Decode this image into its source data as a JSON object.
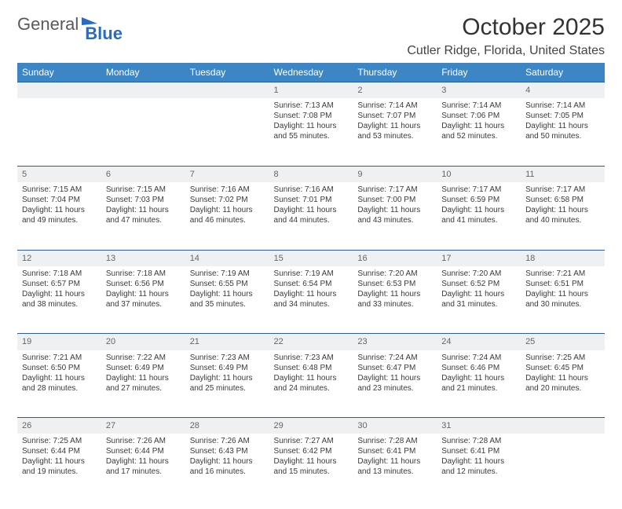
{
  "brand": {
    "general": "General",
    "blue": "Blue"
  },
  "title": {
    "month": "October 2025",
    "location": "Cutler Ridge, Florida, United States"
  },
  "colors": {
    "header_bg": "#3d86c6",
    "header_text": "#ffffff",
    "daynum_bg": "#eef0f2",
    "daynum_text": "#666666",
    "border": "#2f5f8f",
    "body_text": "#3a3a3a",
    "logo_blue": "#2a6bbf",
    "logo_gray": "#5a5a5a"
  },
  "day_headers": [
    "Sunday",
    "Monday",
    "Tuesday",
    "Wednesday",
    "Thursday",
    "Friday",
    "Saturday"
  ],
  "weeks": [
    [
      null,
      null,
      null,
      {
        "num": "1",
        "sunrise": "Sunrise: 7:13 AM",
        "sunset": "Sunset: 7:08 PM",
        "daylight": "Daylight: 11 hours and 55 minutes."
      },
      {
        "num": "2",
        "sunrise": "Sunrise: 7:14 AM",
        "sunset": "Sunset: 7:07 PM",
        "daylight": "Daylight: 11 hours and 53 minutes."
      },
      {
        "num": "3",
        "sunrise": "Sunrise: 7:14 AM",
        "sunset": "Sunset: 7:06 PM",
        "daylight": "Daylight: 11 hours and 52 minutes."
      },
      {
        "num": "4",
        "sunrise": "Sunrise: 7:14 AM",
        "sunset": "Sunset: 7:05 PM",
        "daylight": "Daylight: 11 hours and 50 minutes."
      }
    ],
    [
      {
        "num": "5",
        "sunrise": "Sunrise: 7:15 AM",
        "sunset": "Sunset: 7:04 PM",
        "daylight": "Daylight: 11 hours and 49 minutes."
      },
      {
        "num": "6",
        "sunrise": "Sunrise: 7:15 AM",
        "sunset": "Sunset: 7:03 PM",
        "daylight": "Daylight: 11 hours and 47 minutes."
      },
      {
        "num": "7",
        "sunrise": "Sunrise: 7:16 AM",
        "sunset": "Sunset: 7:02 PM",
        "daylight": "Daylight: 11 hours and 46 minutes."
      },
      {
        "num": "8",
        "sunrise": "Sunrise: 7:16 AM",
        "sunset": "Sunset: 7:01 PM",
        "daylight": "Daylight: 11 hours and 44 minutes."
      },
      {
        "num": "9",
        "sunrise": "Sunrise: 7:17 AM",
        "sunset": "Sunset: 7:00 PM",
        "daylight": "Daylight: 11 hours and 43 minutes."
      },
      {
        "num": "10",
        "sunrise": "Sunrise: 7:17 AM",
        "sunset": "Sunset: 6:59 PM",
        "daylight": "Daylight: 11 hours and 41 minutes."
      },
      {
        "num": "11",
        "sunrise": "Sunrise: 7:17 AM",
        "sunset": "Sunset: 6:58 PM",
        "daylight": "Daylight: 11 hours and 40 minutes."
      }
    ],
    [
      {
        "num": "12",
        "sunrise": "Sunrise: 7:18 AM",
        "sunset": "Sunset: 6:57 PM",
        "daylight": "Daylight: 11 hours and 38 minutes."
      },
      {
        "num": "13",
        "sunrise": "Sunrise: 7:18 AM",
        "sunset": "Sunset: 6:56 PM",
        "daylight": "Daylight: 11 hours and 37 minutes."
      },
      {
        "num": "14",
        "sunrise": "Sunrise: 7:19 AM",
        "sunset": "Sunset: 6:55 PM",
        "daylight": "Daylight: 11 hours and 35 minutes."
      },
      {
        "num": "15",
        "sunrise": "Sunrise: 7:19 AM",
        "sunset": "Sunset: 6:54 PM",
        "daylight": "Daylight: 11 hours and 34 minutes."
      },
      {
        "num": "16",
        "sunrise": "Sunrise: 7:20 AM",
        "sunset": "Sunset: 6:53 PM",
        "daylight": "Daylight: 11 hours and 33 minutes."
      },
      {
        "num": "17",
        "sunrise": "Sunrise: 7:20 AM",
        "sunset": "Sunset: 6:52 PM",
        "daylight": "Daylight: 11 hours and 31 minutes."
      },
      {
        "num": "18",
        "sunrise": "Sunrise: 7:21 AM",
        "sunset": "Sunset: 6:51 PM",
        "daylight": "Daylight: 11 hours and 30 minutes."
      }
    ],
    [
      {
        "num": "19",
        "sunrise": "Sunrise: 7:21 AM",
        "sunset": "Sunset: 6:50 PM",
        "daylight": "Daylight: 11 hours and 28 minutes."
      },
      {
        "num": "20",
        "sunrise": "Sunrise: 7:22 AM",
        "sunset": "Sunset: 6:49 PM",
        "daylight": "Daylight: 11 hours and 27 minutes."
      },
      {
        "num": "21",
        "sunrise": "Sunrise: 7:23 AM",
        "sunset": "Sunset: 6:49 PM",
        "daylight": "Daylight: 11 hours and 25 minutes."
      },
      {
        "num": "22",
        "sunrise": "Sunrise: 7:23 AM",
        "sunset": "Sunset: 6:48 PM",
        "daylight": "Daylight: 11 hours and 24 minutes."
      },
      {
        "num": "23",
        "sunrise": "Sunrise: 7:24 AM",
        "sunset": "Sunset: 6:47 PM",
        "daylight": "Daylight: 11 hours and 23 minutes."
      },
      {
        "num": "24",
        "sunrise": "Sunrise: 7:24 AM",
        "sunset": "Sunset: 6:46 PM",
        "daylight": "Daylight: 11 hours and 21 minutes."
      },
      {
        "num": "25",
        "sunrise": "Sunrise: 7:25 AM",
        "sunset": "Sunset: 6:45 PM",
        "daylight": "Daylight: 11 hours and 20 minutes."
      }
    ],
    [
      {
        "num": "26",
        "sunrise": "Sunrise: 7:25 AM",
        "sunset": "Sunset: 6:44 PM",
        "daylight": "Daylight: 11 hours and 19 minutes."
      },
      {
        "num": "27",
        "sunrise": "Sunrise: 7:26 AM",
        "sunset": "Sunset: 6:44 PM",
        "daylight": "Daylight: 11 hours and 17 minutes."
      },
      {
        "num": "28",
        "sunrise": "Sunrise: 7:26 AM",
        "sunset": "Sunset: 6:43 PM",
        "daylight": "Daylight: 11 hours and 16 minutes."
      },
      {
        "num": "29",
        "sunrise": "Sunrise: 7:27 AM",
        "sunset": "Sunset: 6:42 PM",
        "daylight": "Daylight: 11 hours and 15 minutes."
      },
      {
        "num": "30",
        "sunrise": "Sunrise: 7:28 AM",
        "sunset": "Sunset: 6:41 PM",
        "daylight": "Daylight: 11 hours and 13 minutes."
      },
      {
        "num": "31",
        "sunrise": "Sunrise: 7:28 AM",
        "sunset": "Sunset: 6:41 PM",
        "daylight": "Daylight: 11 hours and 12 minutes."
      },
      null
    ]
  ]
}
